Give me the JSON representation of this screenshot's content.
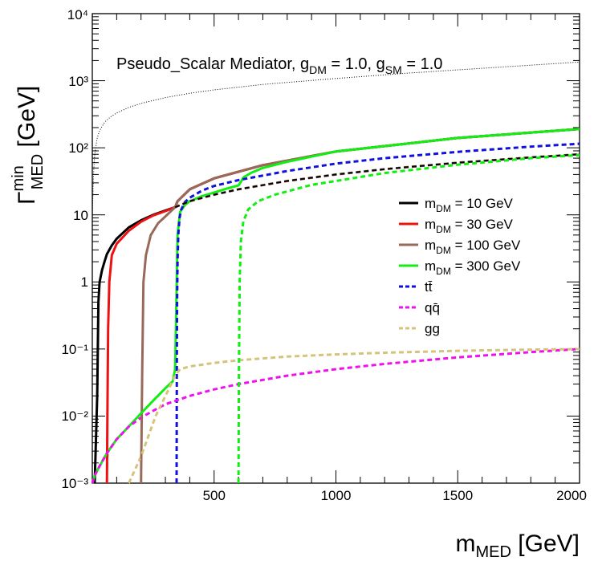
{
  "chart_data": {
    "type": "line",
    "annotation": {
      "prefix": "Pseudo_Scalar Mediator, g",
      "dm_sub": "DM",
      "mid": " = 1.0, g",
      "sm_sub": "SM",
      "suffix": " = 1.0"
    },
    "xlabel": {
      "main": "m",
      "sub": "MED",
      "unit": " [GeV]"
    },
    "ylabel": {
      "main": "Γ",
      "sup": "min",
      "sub": "MED",
      "unit": " [GeV]"
    },
    "x_ticks": [
      "500",
      "1000",
      "1500",
      "2000"
    ],
    "y_ticks": [
      "10⁻³",
      "10⁻²",
      "10⁻¹",
      "1",
      "10",
      "10²",
      "10³",
      "10⁴"
    ],
    "xlim": [
      0,
      2000
    ],
    "ylim": [
      0.001,
      10000
    ],
    "ylog": true,
    "legend_position": "right",
    "legend": [
      {
        "main": "m",
        "sub": "DM",
        "rest": " = 10 GeV",
        "color": "#000000",
        "dashed": false
      },
      {
        "main": "m",
        "sub": "DM",
        "rest": " = 30 GeV",
        "color": "#ee1111",
        "dashed": false
      },
      {
        "main": "m",
        "sub": "DM",
        "rest": " = 100 GeV",
        "color": "#99695a",
        "dashed": false
      },
      {
        "main": "m",
        "sub": "DM",
        "rest": " = 300 GeV",
        "color": "#11ee11",
        "dashed": false
      },
      {
        "main": "tt̄",
        "sub": "",
        "rest": "",
        "color": "#1111dd",
        "dashed": true
      },
      {
        "main": "qq̄",
        "sub": "",
        "rest": "",
        "color": "#ee11ee",
        "dashed": true
      },
      {
        "main": "gg",
        "sub": "",
        "rest": "",
        "color": "#d4c47a",
        "dashed": true
      }
    ],
    "series": [
      {
        "key": "dm10",
        "color": "#000000",
        "dash": "",
        "width": 3,
        "x": [
          10,
          20,
          25,
          30,
          40,
          50,
          60,
          80,
          100,
          150,
          200,
          250,
          300,
          340,
          350,
          400,
          500,
          700,
          1000,
          1500,
          2000
        ],
        "y": [
          0.001,
          0.02,
          0.5,
          1,
          1.5,
          2,
          2.6,
          3.5,
          4.4,
          6.5,
          8.3,
          10,
          11.6,
          13,
          16,
          24,
          35,
          55,
          88,
          140,
          190
        ]
      },
      {
        "key": "dm30",
        "color": "#ee1111",
        "dash": "",
        "width": 3,
        "x": [
          60,
          62,
          65,
          70,
          80,
          100,
          150,
          200,
          250,
          300,
          340,
          350,
          400,
          500,
          700,
          1000,
          1500,
          2000
        ],
        "y": [
          0.001,
          0.01,
          0.2,
          1,
          2.5,
          3.7,
          5.8,
          7.9,
          9.8,
          11.4,
          13,
          16,
          24,
          35,
          55,
          88,
          140,
          190
        ]
      },
      {
        "key": "dm100",
        "color": "#99695a",
        "dash": "",
        "width": 3,
        "x": [
          200,
          205,
          210,
          220,
          240,
          270,
          300,
          340,
          350,
          400,
          500,
          700,
          1000,
          1500,
          2000
        ],
        "y": [
          0.001,
          0.05,
          1,
          2.5,
          5,
          7.5,
          9.5,
          13,
          16,
          24,
          35,
          55,
          88,
          140,
          190
        ]
      },
      {
        "key": "dm300",
        "color": "#11ee11",
        "dash": "",
        "width": 3,
        "x": [
          0,
          10,
          30,
          60,
          100,
          150,
          200,
          250,
          300,
          330,
          340,
          345,
          350,
          360,
          380,
          400,
          450,
          500,
          550,
          600,
          610,
          620,
          650,
          700,
          800,
          1000,
          1500,
          2000
        ],
        "y": [
          0.001,
          0.0013,
          0.0018,
          0.0028,
          0.0045,
          0.007,
          0.011,
          0.017,
          0.026,
          0.033,
          0.05,
          0.5,
          5,
          11,
          14,
          16,
          19,
          21.5,
          24.5,
          27.5,
          31,
          36,
          42,
          50,
          62,
          88,
          140,
          190
        ]
      },
      {
        "key": "tt",
        "color": "#1111dd",
        "dash": "6,4",
        "width": 3,
        "x": [
          346,
          347,
          348,
          350,
          353,
          358,
          365,
          380,
          400,
          450,
          500,
          600,
          800,
          1000,
          1200,
          1500,
          1800,
          2000
        ],
        "y": [
          0.001,
          0.05,
          0.5,
          2,
          5,
          9,
          12,
          15.5,
          18,
          23,
          27,
          33,
          45,
          58,
          70,
          87,
          104,
          115
        ]
      },
      {
        "key": "qq",
        "color": "#ee11ee",
        "dash": "6,4",
        "width": 3,
        "x": [
          0,
          10,
          30,
          60,
          100,
          150,
          200,
          250,
          300,
          400,
          500,
          600,
          800,
          1000,
          1200,
          1500,
          1800,
          2000
        ],
        "y": [
          0.001,
          0.0013,
          0.0018,
          0.0028,
          0.0045,
          0.007,
          0.0095,
          0.012,
          0.015,
          0.02,
          0.025,
          0.03,
          0.04,
          0.05,
          0.06,
          0.075,
          0.09,
          0.1
        ]
      },
      {
        "key": "gg",
        "color": "#d4c47a",
        "dash": "6,4",
        "width": 3,
        "x": [
          150,
          200,
          230,
          260,
          300,
          340,
          360,
          400,
          500,
          600,
          800,
          1000,
          1200,
          1500,
          1800,
          2000
        ],
        "y": [
          0.001,
          0.0025,
          0.005,
          0.01,
          0.02,
          0.04,
          0.05,
          0.055,
          0.062,
          0.068,
          0.077,
          0.083,
          0.088,
          0.094,
          0.098,
          0.1
        ]
      },
      {
        "key": "dm10_tail",
        "color": "#99695a",
        "dash": "6,4",
        "width": 3,
        "x": [
          340,
          400,
          500,
          600,
          800,
          1000,
          1200,
          1500,
          1800,
          2000
        ],
        "y": [
          13,
          16,
          20,
          24,
          32,
          40,
          48,
          60,
          72,
          80
        ]
      },
      {
        "key": "dm10_tail_b",
        "color": "#000000",
        "dash": "6,4",
        "width": 2,
        "x": [
          340,
          400,
          500,
          600,
          800,
          1000,
          1200,
          1500,
          1800,
          2000
        ],
        "y": [
          13,
          16,
          20,
          24,
          32,
          40,
          48,
          60,
          72,
          80
        ]
      },
      {
        "key": "dm300_tail",
        "color": "#11ee11",
        "dash": "6,4",
        "width": 3,
        "x": [
          600,
          602,
          605,
          610,
          620,
          640,
          680,
          750,
          900,
          1000,
          1200,
          1500,
          1800,
          2000
        ],
        "y": [
          0.001,
          0.05,
          1,
          4,
          8,
          12,
          16,
          20,
          28,
          32,
          42,
          56,
          70,
          78
        ]
      },
      {
        "key": "dm100_lower",
        "color": "#99695a",
        "dash": "6,4",
        "width": 2,
        "x": [
          200,
          201,
          202,
          205
        ],
        "y": [
          0.001,
          0.004,
          0.008,
          0.012
        ]
      },
      {
        "key": "dm30_lower",
        "color": "#ee1111",
        "dash": "6,4",
        "width": 2,
        "x": [
          60,
          61,
          62,
          64
        ],
        "y": [
          0.001,
          0.0016,
          0.0022,
          0.0027
        ]
      },
      {
        "key": "upper",
        "color": "#000000",
        "dash": "1,2",
        "width": 1,
        "x": [
          0,
          5,
          10,
          20,
          30,
          50,
          75,
          100,
          150,
          200,
          300,
          400,
          500,
          700,
          1000,
          1300,
          1600,
          2000
        ],
        "y": [
          9,
          40,
          80,
          140,
          180,
          240,
          290,
          330,
          400,
          460,
          560,
          650,
          730,
          880,
          1080,
          1300,
          1530,
          1900
        ]
      }
    ]
  }
}
